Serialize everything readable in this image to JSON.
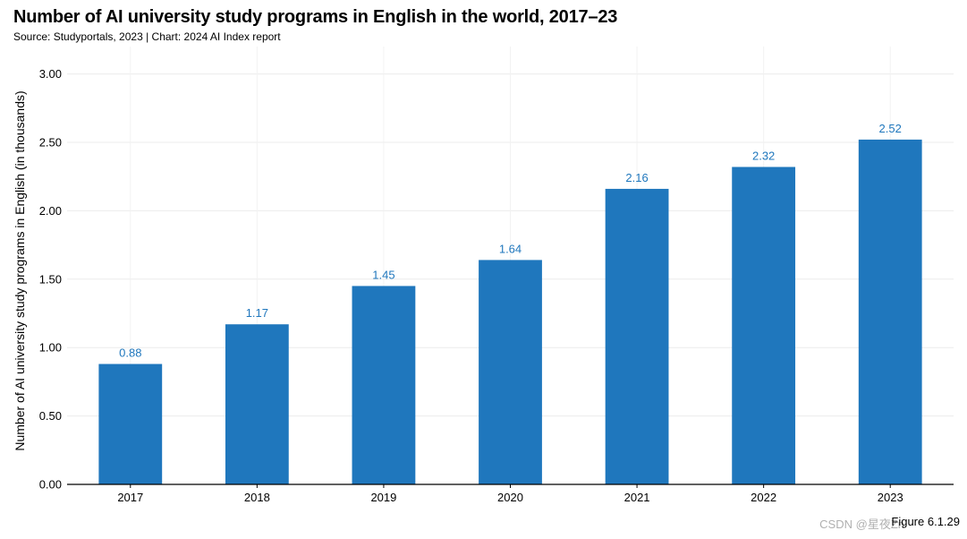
{
  "chart_data": {
    "type": "bar",
    "title": "Number of AI university study programs in English in the world, 2017–23",
    "subtitle": "Source: Studyportals, 2023 | Chart: 2024 AI Index report",
    "xlabel": "",
    "ylabel": "Number of AI university study programs in English (in thousands)",
    "categories": [
      "2017",
      "2018",
      "2019",
      "2020",
      "2021",
      "2022",
      "2023"
    ],
    "values": [
      0.88,
      1.17,
      1.45,
      1.64,
      2.16,
      2.32,
      2.52
    ],
    "value_labels": [
      "0.88",
      "1.17",
      "1.45",
      "1.64",
      "2.16",
      "2.32",
      "2.52"
    ],
    "ylim": [
      0,
      3.2
    ],
    "yticks": [
      0,
      0.5,
      1.0,
      1.5,
      2.0,
      2.5,
      3.0
    ],
    "ytick_labels": [
      "0.00",
      "0.50",
      "1.00",
      "1.50",
      "2.00",
      "2.50",
      "3.00"
    ],
    "grid": true,
    "bar_color": "#1f77bd",
    "label_color": "#1f77bd"
  },
  "footer": {
    "figure_label": "Figure 6.1.29",
    "watermark": "CSDN @星夜Zn"
  }
}
